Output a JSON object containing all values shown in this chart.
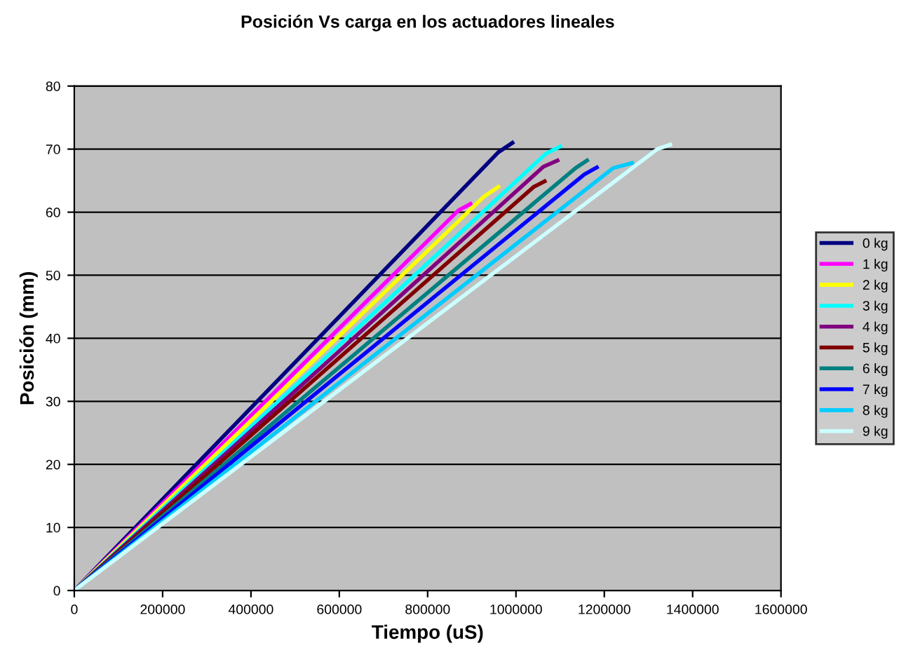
{
  "chart_data": {
    "type": "line",
    "title": "Posición Vs carga en los actuadores lineales",
    "xlabel": "Tiempo (uS)",
    "ylabel": "Posición (mm)",
    "xlim": [
      0,
      1600000
    ],
    "xticks": [
      0,
      200000,
      400000,
      600000,
      800000,
      1000000,
      1200000,
      1400000,
      1600000
    ],
    "ylim": [
      0,
      80
    ],
    "yticks": [
      0,
      10,
      20,
      30,
      40,
      50,
      60,
      70,
      80
    ],
    "grid": "y",
    "legend": "right",
    "marker": "none",
    "line_style": "solid",
    "series": [
      {
        "name": "0 kg",
        "color": "#000080",
        "x": [
          0,
          960000,
          992000
        ],
        "values": [
          0,
          69.5,
          71
        ]
      },
      {
        "name": "1 kg",
        "color": "#ff00ff",
        "x": [
          0,
          870000,
          897000
        ],
        "values": [
          0,
          60.3,
          61.3
        ]
      },
      {
        "name": "2 kg",
        "color": "#ffff00",
        "x": [
          0,
          928000,
          960000
        ],
        "values": [
          0,
          62.5,
          64
        ]
      },
      {
        "name": "3 kg",
        "color": "#00ffff",
        "x": [
          0,
          1068000,
          1100000
        ],
        "values": [
          0,
          69.3,
          70.4
        ]
      },
      {
        "name": "4 kg",
        "color": "#800080",
        "x": [
          0,
          1062000,
          1094000
        ],
        "values": [
          0,
          67.2,
          68.2
        ]
      },
      {
        "name": "5 kg",
        "color": "#800000",
        "x": [
          0,
          1040000,
          1065000
        ],
        "values": [
          0,
          64,
          64.9
        ]
      },
      {
        "name": "6 kg",
        "color": "#008080",
        "x": [
          0,
          1135000,
          1161000
        ],
        "values": [
          0,
          67,
          68.2
        ]
      },
      {
        "name": "7 kg",
        "color": "#0000ff",
        "x": [
          0,
          1155000,
          1183000
        ],
        "values": [
          0,
          66,
          67.1
        ]
      },
      {
        "name": "8 kg",
        "color": "#00ccff",
        "x": [
          0,
          1220000,
          1263000
        ],
        "values": [
          0,
          67,
          67.8
        ]
      },
      {
        "name": "9 kg",
        "color": "#ccffff",
        "x": [
          0,
          1320000,
          1349000
        ],
        "values": [
          0,
          70,
          70.7
        ]
      }
    ]
  }
}
